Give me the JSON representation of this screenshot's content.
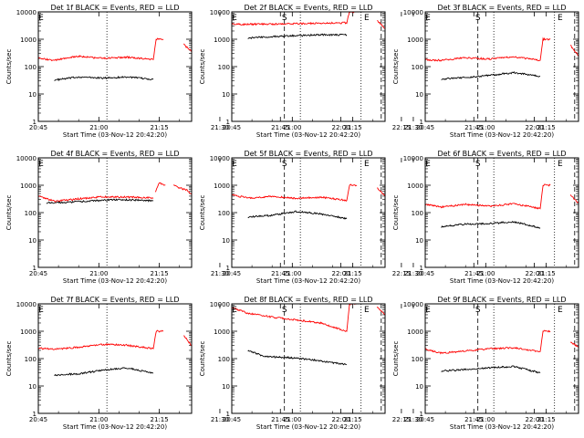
{
  "colors": {
    "events": "#000000",
    "lld": "#ff0000",
    "axis": "#000000"
  },
  "chart_data": {
    "type": "line",
    "figure_layout": "3x3 grid",
    "yscale": "log",
    "ylim": [
      1,
      10000
    ],
    "y_tick_labels": [
      "1",
      "10",
      "100",
      "1000",
      "10000"
    ],
    "x_tick_labels": [
      "20:45",
      "21:00",
      "21:15",
      "21:30",
      "21:45",
      "22:00",
      "22:15"
    ],
    "xlim_minutes_after_2045": [
      0,
      38
    ],
    "ylabel": "Counts/sec",
    "xlabel": "Start Time (03-Nov-12 20:42:20)",
    "marker_labels": [
      "S",
      "E",
      "E"
    ],
    "dashed_vlines_time": [
      "21:46",
      "22:10"
    ],
    "dotted_vlines_time": [
      "21:02",
      "22:05"
    ],
    "panels": [
      {
        "title": "Det 1f BLACK = Events, RED = LLD",
        "series": [
          {
            "name": "Events",
            "color": "#000000",
            "segments": [
              {
                "t": [
                  4,
                  10,
                  16,
                  22,
                  28.5
                ],
                "v": [
                  32,
                  42,
                  38,
                  42,
                  34
                ]
              }
            ]
          },
          {
            "name": "LLD",
            "color": "#ff0000",
            "segments": [
              {
                "t": [
                  0,
                  4,
                  10,
                  16,
                  22,
                  28.5,
                  29.2,
                  31
                ],
                "v": [
                  200,
                  170,
                  240,
                  200,
                  220,
                  180,
                  1000,
                  1000
                ]
              },
              {
                "t": [
                  36,
                  38
                ],
                "v": [
                  650,
                  350
                ]
              }
            ]
          }
        ]
      },
      {
        "title": "Det 2f BLACK = Events, RED = LLD",
        "series": [
          {
            "name": "Events",
            "color": "#000000",
            "segments": [
              {
                "t": [
                  4,
                  10,
                  16,
                  22,
                  28.5
                ],
                "v": [
                  1100,
                  1250,
                  1350,
                  1450,
                  1450
                ]
              }
            ]
          },
          {
            "name": "LLD",
            "color": "#ff0000",
            "segments": [
              {
                "t": [
                  0,
                  10,
                  20,
                  28.5,
                  29.2,
                  31
                ],
                "v": [
                  3500,
                  3600,
                  3800,
                  4000,
                  10000,
                  10000
                ]
              },
              {
                "t": [
                  36,
                  38
                ],
                "v": [
                  5000,
                  2500
                ]
              }
            ]
          }
        ]
      },
      {
        "title": "Det 3f BLACK = Events, RED = LLD",
        "series": [
          {
            "name": "Events",
            "color": "#000000",
            "segments": [
              {
                "t": [
                  4,
                  10,
                  16,
                  22,
                  28.5
                ],
                "v": [
                  35,
                  40,
                  48,
                  60,
                  45
                ]
              }
            ]
          },
          {
            "name": "LLD",
            "color": "#ff0000",
            "segments": [
              {
                "t": [
                  0,
                  4,
                  10,
                  16,
                  22,
                  28.5,
                  29.2,
                  31
                ],
                "v": [
                  180,
                  170,
                  210,
                  190,
                  230,
                  170,
                  1000,
                  1000
                ]
              },
              {
                "t": [
                  36,
                  38
                ],
                "v": [
                  600,
                  250
                ]
              }
            ]
          }
        ]
      },
      {
        "title": "Det 4f BLACK = Events, RED = LLD",
        "series": [
          {
            "name": "Events",
            "color": "#000000",
            "segments": [
              {
                "t": [
                  2,
                  8,
                  14,
                  20,
                  26,
                  28.5
                ],
                "v": [
                  230,
                  240,
                  270,
                  300,
                  280,
                  270
                ]
              }
            ]
          },
          {
            "name": "LLD",
            "color": "#ff0000",
            "segments": [
              {
                "t": [
                  0,
                  4,
                  10,
                  16,
                  22,
                  28.5
                ],
                "v": [
                  400,
                  260,
                  320,
                  380,
                  370,
                  350
                ]
              },
              {
                "t": [
                  29,
                  30,
                  31.5
                ],
                "v": [
                  550,
                  1200,
                  1000
                ]
              },
              {
                "t": [
                  33.5,
                  35,
                  37,
                  38
                ],
                "v": [
                  1000,
                  800,
                  650,
                  450
                ]
              }
            ]
          }
        ]
      },
      {
        "title": "Det 5f BLACK = Events, RED = LLD",
        "series": [
          {
            "name": "Events",
            "color": "#000000",
            "segments": [
              {
                "t": [
                  4,
                  10,
                  16,
                  22,
                  28.5
                ],
                "v": [
                  70,
                  80,
                  110,
                  90,
                  60
                ]
              }
            ]
          },
          {
            "name": "LLD",
            "color": "#ff0000",
            "segments": [
              {
                "t": [
                  0,
                  4,
                  10,
                  16,
                  22,
                  28.5,
                  29.2,
                  31
                ],
                "v": [
                  450,
                  340,
                  390,
                  330,
                  370,
                  280,
                  1000,
                  1000
                ]
              },
              {
                "t": [
                  36,
                  38
                ],
                "v": [
                  800,
                  400
                ]
              }
            ]
          }
        ]
      },
      {
        "title": "Det 6f BLACK = Events, RED = LLD",
        "series": [
          {
            "name": "Events",
            "color": "#000000",
            "segments": [
              {
                "t": [
                  4,
                  10,
                  16,
                  22,
                  28.5
                ],
                "v": [
                  30,
                  38,
                  40,
                  46,
                  28
                ]
              }
            ]
          },
          {
            "name": "LLD",
            "color": "#ff0000",
            "segments": [
              {
                "t": [
                  0,
                  4,
                  10,
                  16,
                  22,
                  28.5,
                  29.2,
                  31
                ],
                "v": [
                  200,
                  160,
                  200,
                  170,
                  210,
                  140,
                  1000,
                  1000
                ]
              },
              {
                "t": [
                  36,
                  38
                ],
                "v": [
                  450,
                  220
                ]
              }
            ]
          }
        ]
      },
      {
        "title": "Det 7f BLACK = Events, RED = LLD",
        "series": [
          {
            "name": "Events",
            "color": "#000000",
            "segments": [
              {
                "t": [
                  4,
                  10,
                  16,
                  22,
                  28.5
                ],
                "v": [
                  25,
                  28,
                  38,
                  45,
                  30
                ]
              }
            ]
          },
          {
            "name": "LLD",
            "color": "#ff0000",
            "segments": [
              {
                "t": [
                  0,
                  4,
                  10,
                  16,
                  22,
                  28.5,
                  29.2,
                  31
                ],
                "v": [
                  240,
                  220,
                  260,
                  330,
                  310,
                  230,
                  1000,
                  1000
                ]
              },
              {
                "t": [
                  36,
                  38
                ],
                "v": [
                  700,
                  300
                ]
              }
            ]
          }
        ]
      },
      {
        "title": "Det 8f BLACK = Events, RED = LLD",
        "series": [
          {
            "name": "Events",
            "color": "#000000",
            "segments": [
              {
                "t": [
                  4,
                  8,
                  14,
                  20,
                  28.5
                ],
                "v": [
                  200,
                  120,
                  110,
                  90,
                  60
                ]
              }
            ]
          },
          {
            "name": "LLD",
            "color": "#ff0000",
            "segments": [
              {
                "t": [
                  0,
                  4,
                  10,
                  16,
                  22,
                  28.5,
                  29.2,
                  31
                ],
                "v": [
                  7500,
                  4500,
                  3300,
                  2600,
                  2000,
                  1000,
                  10000,
                  10000
                ]
              },
              {
                "t": [
                  36,
                  38
                ],
                "v": [
                  8000,
                  4000
                ]
              }
            ]
          }
        ]
      },
      {
        "title": "Det 9f BLACK = Events, RED = LLD",
        "series": [
          {
            "name": "Events",
            "color": "#000000",
            "segments": [
              {
                "t": [
                  4,
                  10,
                  16,
                  22,
                  28.5
                ],
                "v": [
                  35,
                  40,
                  46,
                  52,
                  30
                ]
              }
            ]
          },
          {
            "name": "LLD",
            "color": "#ff0000",
            "segments": [
              {
                "t": [
                  0,
                  4,
                  10,
                  16,
                  22,
                  28.5,
                  29.2,
                  31
                ],
                "v": [
                  220,
                  160,
                  190,
                  230,
                  250,
                  180,
                  1000,
                  1000
                ]
              },
              {
                "t": [
                  36,
                  38
                ],
                "v": [
                  400,
                  260
                ]
              }
            ]
          }
        ]
      }
    ]
  }
}
